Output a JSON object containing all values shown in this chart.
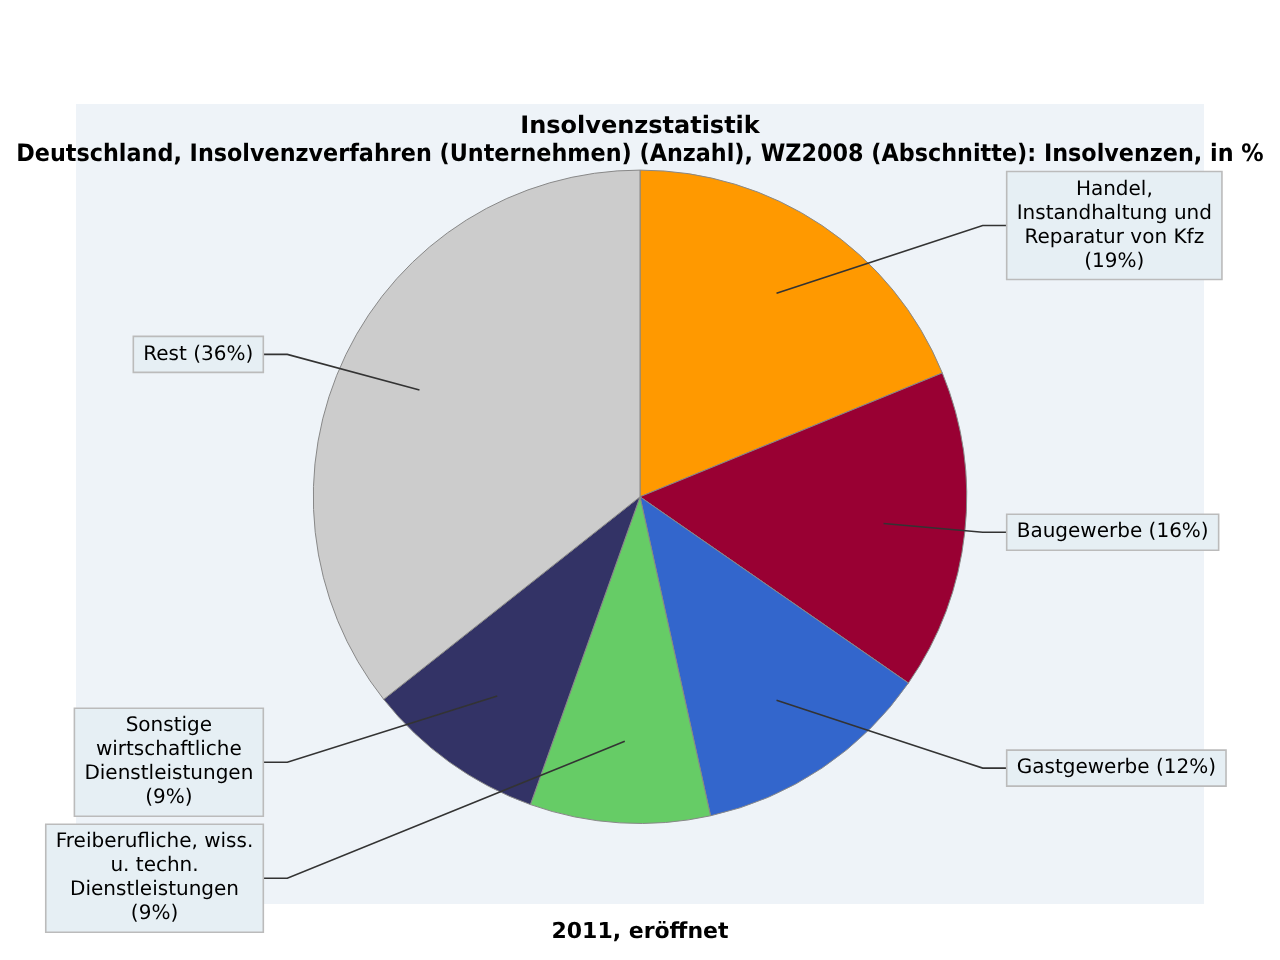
{
  "chart_data": {
    "type": "pie",
    "title": "Insolvenzstatistik",
    "subtitle": "Deutschland, Insolvenzverfahren (Unternehmen) (Anzahl), WZ2008 (Abschnitte): Insolvenzen, in %",
    "categories": [
      "Handel, Instandhaltung und Reparatur von Kfz (19%)",
      "Baugewerbe (16%)",
      "Gastgewerbe (12%)",
      "Freiberufliche, wiss. u. techn. Dienstleistungen (9%)",
      "Sonstige wirtschaftliche Dienstleistungen (9%)",
      "Rest (36%)"
    ],
    "values": [
      19,
      16,
      12,
      9,
      9,
      36
    ],
    "colors": [
      "#ff9900",
      "#990033",
      "#3366cc",
      "#66cc66",
      "#333366",
      "#cccccc"
    ],
    "annotations": [
      "2011, eröffnet"
    ],
    "legend": false
  }
}
